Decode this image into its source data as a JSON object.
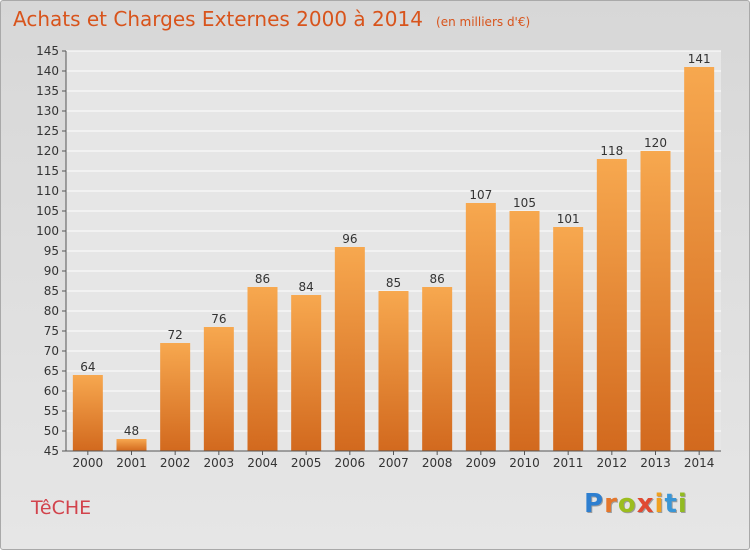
{
  "header": {
    "title": "Achats et Charges Externes 2000 à 2014",
    "subtitle": "(en milliers d'€)"
  },
  "footer": {
    "place": "TêCHE",
    "brand_letters": [
      {
        "char": "P",
        "color": "#2e7fd0"
      },
      {
        "char": "r",
        "color": "#e5762b"
      },
      {
        "char": "o",
        "color": "#9cbd1e"
      },
      {
        "char": "x",
        "color": "#e04a32"
      },
      {
        "char": "i",
        "color": "#f0a020"
      },
      {
        "char": "t",
        "color": "#3a96d6"
      },
      {
        "char": "i",
        "color": "#92bb22"
      }
    ]
  },
  "chart_data": {
    "type": "bar",
    "title": "Achats et Charges Externes 2000 à 2014",
    "subtitle": "(en milliers d'€)",
    "categories": [
      "2000",
      "2001",
      "2002",
      "2003",
      "2004",
      "2005",
      "2006",
      "2007",
      "2008",
      "2009",
      "2010",
      "2011",
      "2012",
      "2013",
      "2014"
    ],
    "values": [
      64,
      48,
      72,
      76,
      86,
      84,
      96,
      85,
      86,
      107,
      105,
      101,
      118,
      120,
      141
    ],
    "ylim": [
      45,
      145
    ],
    "yticks": [
      45,
      50,
      55,
      60,
      65,
      70,
      75,
      80,
      85,
      90,
      95,
      100,
      105,
      110,
      115,
      120,
      125,
      130,
      135,
      140,
      145
    ],
    "grid": true,
    "bar_color_top": "#f7a84f",
    "bar_color_bottom": "#d2691e"
  }
}
